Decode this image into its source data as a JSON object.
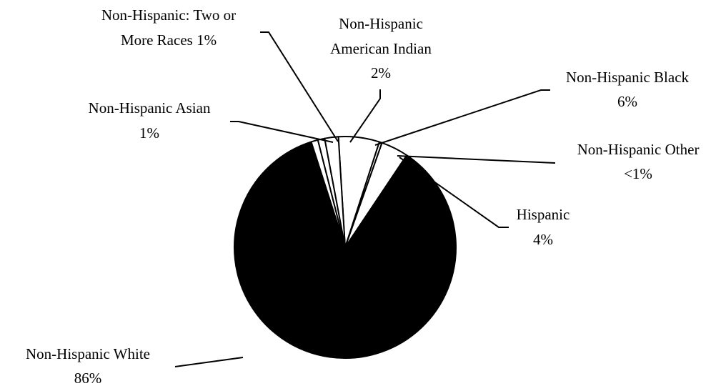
{
  "chart_data": {
    "type": "pie",
    "title": "",
    "slices": [
      {
        "label": "Non-Hispanic Black",
        "value": "6%",
        "percent": 6,
        "color": "#ffffff"
      },
      {
        "label": "Non-Hispanic Other",
        "value": "<1%",
        "percent": 0.4,
        "color": "#ffffff"
      },
      {
        "label": "Hispanic",
        "value": "4%",
        "percent": 4,
        "color": "#ffffff"
      },
      {
        "label": "Non-Hispanic White",
        "value": "86%",
        "percent": 86,
        "color": "#000000"
      },
      {
        "label": "Non-Hispanic Asian",
        "value": "1%",
        "percent": 1,
        "color": "#ffffff"
      },
      {
        "label": "Non-Hispanic: Two or More Races",
        "value": "1%",
        "percent": 1,
        "color": "#ffffff"
      },
      {
        "label": "Non-Hispanic American Indian",
        "value": "2%",
        "percent": 2,
        "color": "#ffffff"
      }
    ],
    "legend": "none",
    "labels": "outside with leader lines"
  },
  "labels": {
    "black": {
      "line1": "Non-Hispanic Black",
      "line2": "6%"
    },
    "other": {
      "line1": "Non-Hispanic Other",
      "line2": "<1%"
    },
    "hispanic": {
      "line1": "Hispanic",
      "line2": "4%"
    },
    "white": {
      "line1": "Non-Hispanic White",
      "line2": "86%"
    },
    "asian": {
      "line1": "Non-Hispanic Asian",
      "line2": "1%"
    },
    "two_or_more": {
      "line1": "Non-Hispanic: Two or",
      "line2": "More Races 1%"
    },
    "american_indian": {
      "line1": "Non-Hispanic",
      "line2": "American Indian",
      "line3": "2%"
    }
  }
}
